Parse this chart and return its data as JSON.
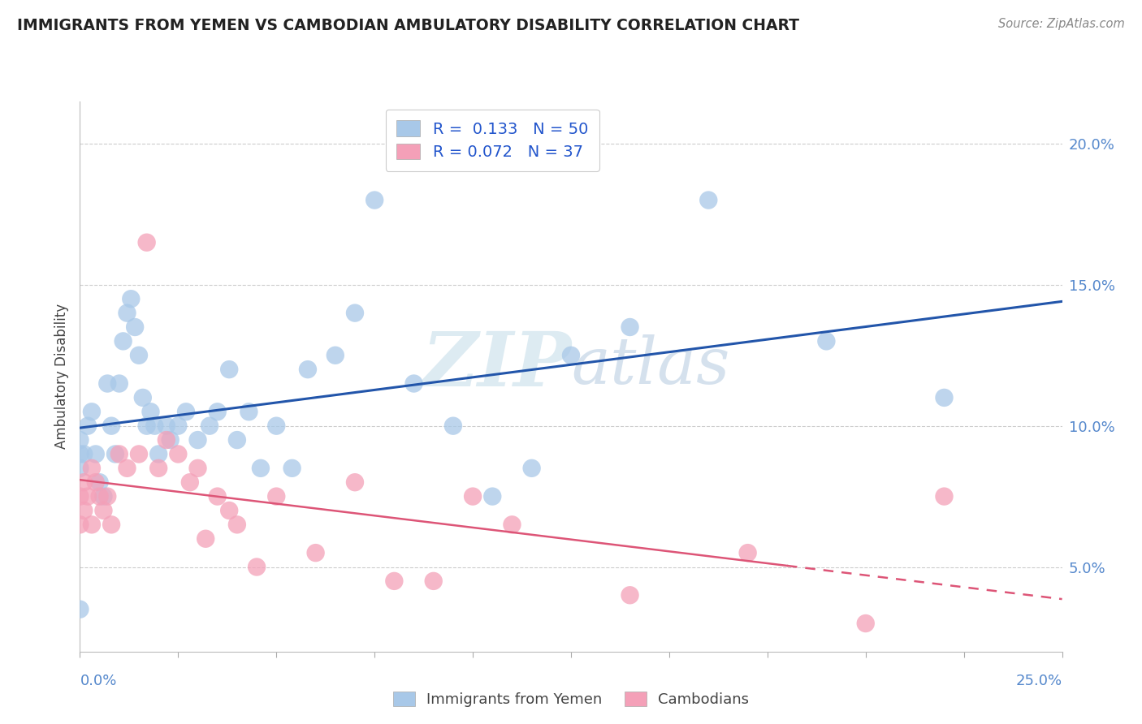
{
  "title": "IMMIGRANTS FROM YEMEN VS CAMBODIAN AMBULATORY DISABILITY CORRELATION CHART",
  "source": "Source: ZipAtlas.com",
  "ylabel": "Ambulatory Disability",
  "xmin": 0.0,
  "xmax": 0.25,
  "ymin": 0.02,
  "ymax": 0.215,
  "yticks": [
    0.05,
    0.1,
    0.15,
    0.2
  ],
  "ytick_labels": [
    "5.0%",
    "10.0%",
    "15.0%",
    "20.0%"
  ],
  "legend1_R": "0.133",
  "legend1_N": "50",
  "legend2_R": "0.072",
  "legend2_N": "37",
  "blue_color": "#a8c8e8",
  "pink_color": "#f4a0b8",
  "blue_line_color": "#2255aa",
  "pink_line_color": "#dd5577",
  "blue_points_x": [
    0.001,
    0.002,
    0.003,
    0.004,
    0.005,
    0.006,
    0.007,
    0.008,
    0.009,
    0.01,
    0.011,
    0.012,
    0.013,
    0.014,
    0.015,
    0.016,
    0.017,
    0.018,
    0.019,
    0.02,
    0.022,
    0.023,
    0.025,
    0.027,
    0.03,
    0.033,
    0.035,
    0.038,
    0.04,
    0.043,
    0.046,
    0.05,
    0.054,
    0.058,
    0.065,
    0.07,
    0.075,
    0.085,
    0.095,
    0.105,
    0.115,
    0.125,
    0.14,
    0.16,
    0.19,
    0.22,
    0.0,
    0.0,
    0.0,
    0.0
  ],
  "blue_points_y": [
    0.09,
    0.1,
    0.105,
    0.09,
    0.08,
    0.075,
    0.115,
    0.1,
    0.09,
    0.115,
    0.13,
    0.14,
    0.145,
    0.135,
    0.125,
    0.11,
    0.1,
    0.105,
    0.1,
    0.09,
    0.1,
    0.095,
    0.1,
    0.105,
    0.095,
    0.1,
    0.105,
    0.12,
    0.095,
    0.105,
    0.085,
    0.1,
    0.085,
    0.12,
    0.125,
    0.14,
    0.18,
    0.115,
    0.1,
    0.075,
    0.085,
    0.125,
    0.135,
    0.18,
    0.13,
    0.11,
    0.09,
    0.085,
    0.095,
    0.035
  ],
  "pink_points_x": [
    0.0,
    0.0,
    0.001,
    0.001,
    0.002,
    0.003,
    0.003,
    0.004,
    0.005,
    0.006,
    0.007,
    0.008,
    0.01,
    0.012,
    0.015,
    0.017,
    0.02,
    0.022,
    0.025,
    0.028,
    0.03,
    0.032,
    0.035,
    0.038,
    0.04,
    0.045,
    0.05,
    0.06,
    0.07,
    0.08,
    0.09,
    0.1,
    0.11,
    0.14,
    0.17,
    0.2,
    0.22
  ],
  "pink_points_y": [
    0.075,
    0.065,
    0.08,
    0.07,
    0.075,
    0.085,
    0.065,
    0.08,
    0.075,
    0.07,
    0.075,
    0.065,
    0.09,
    0.085,
    0.09,
    0.165,
    0.085,
    0.095,
    0.09,
    0.08,
    0.085,
    0.06,
    0.075,
    0.07,
    0.065,
    0.05,
    0.075,
    0.055,
    0.08,
    0.045,
    0.045,
    0.075,
    0.065,
    0.04,
    0.055,
    0.03,
    0.075
  ]
}
